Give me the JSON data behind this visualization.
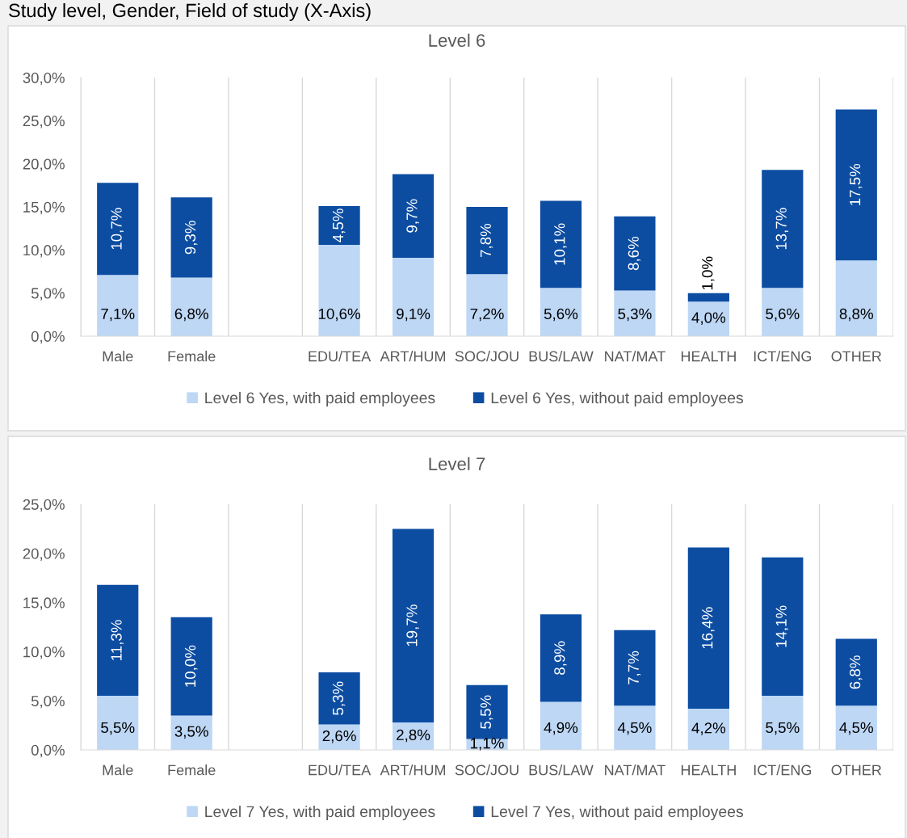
{
  "chart_data": [
    {
      "type": "bar",
      "title": "Level 6",
      "annotations": [
        "Study level, Gender, Field of study (X-Axis)"
      ],
      "categories": [
        "Male",
        "Female",
        null,
        "EDU/TEA",
        "ART/HUM",
        "SOC/JOU",
        "BUS/LAW",
        "NAT/MAT",
        "HEALTH",
        "ICT/ENG",
        "OTHER"
      ],
      "series": [
        {
          "name": "Level 6 Yes, with paid employees",
          "color": "#bdd7f5",
          "values": [
            7.1,
            6.8,
            null,
            10.6,
            9.1,
            7.2,
            5.6,
            5.3,
            4.0,
            5.6,
            8.8
          ],
          "value_labels": [
            "7,1%",
            "6,8%",
            null,
            "10,6%",
            "9,1%",
            "7,2%",
            "5,6%",
            "5,3%",
            "4,0%",
            "5,6%",
            "8,8%"
          ]
        },
        {
          "name": "Level 6 Yes, without paid employees",
          "color": "#0c4da2",
          "values": [
            10.7,
            9.3,
            null,
            4.5,
            9.7,
            7.8,
            10.1,
            8.6,
            1.0,
            13.7,
            17.5
          ],
          "value_labels": [
            "10,7%",
            "9,3%",
            null,
            "4,5%",
            "9,7%",
            "7,8%",
            "10,1%",
            "8,6%",
            "1,0%",
            "13,7%",
            "17,5%"
          ]
        }
      ],
      "stacked": true,
      "ylim": [
        0,
        30
      ],
      "yticks": [
        {
          "value": 0,
          "label": "0,0%"
        },
        {
          "value": 5,
          "label": "5,0%"
        },
        {
          "value": 10,
          "label": "10,0%"
        },
        {
          "value": 15,
          "label": "15,0%"
        },
        {
          "value": 20,
          "label": "20,0%"
        },
        {
          "value": 25,
          "label": "25,0%"
        },
        {
          "value": 30,
          "label": "30,0%"
        }
      ],
      "grid": "x",
      "legend": "bottom"
    },
    {
      "type": "bar",
      "title": "Level 7",
      "categories": [
        "Male",
        "Female",
        null,
        "EDU/TEA",
        "ART/HUM",
        "SOC/JOU",
        "BUS/LAW",
        "NAT/MAT",
        "HEALTH",
        "ICT/ENG",
        "OTHER"
      ],
      "series": [
        {
          "name": "Level 7 Yes, with paid employees",
          "color": "#bdd7f5",
          "values": [
            5.5,
            3.5,
            null,
            2.6,
            2.8,
            1.1,
            4.9,
            4.5,
            4.2,
            5.5,
            4.5
          ],
          "value_labels": [
            "5,5%",
            "3,5%",
            null,
            "2,6%",
            "2,8%",
            "1,1%",
            "4,9%",
            "4,5%",
            "4,2%",
            "5,5%",
            "4,5%"
          ]
        },
        {
          "name": "Level 7 Yes, without paid employees",
          "color": "#0c4da2",
          "values": [
            11.3,
            10.0,
            null,
            5.3,
            19.7,
            5.5,
            8.9,
            7.7,
            16.4,
            14.1,
            6.8
          ],
          "value_labels": [
            "11,3%",
            "10,0%",
            null,
            "5,3%",
            "19,7%",
            "5,5%",
            "8,9%",
            "7,7%",
            "16,4%",
            "14,1%",
            "6,8%"
          ]
        }
      ],
      "stacked": true,
      "ylim": [
        0,
        25
      ],
      "yticks": [
        {
          "value": 0,
          "label": "0,0%"
        },
        {
          "value": 5,
          "label": "5,0%"
        },
        {
          "value": 10,
          "label": "10,0%"
        },
        {
          "value": 15,
          "label": "15,0%"
        },
        {
          "value": 20,
          "label": "20,0%"
        },
        {
          "value": 25,
          "label": "25,0%"
        }
      ],
      "grid": "x",
      "legend": "bottom"
    }
  ]
}
